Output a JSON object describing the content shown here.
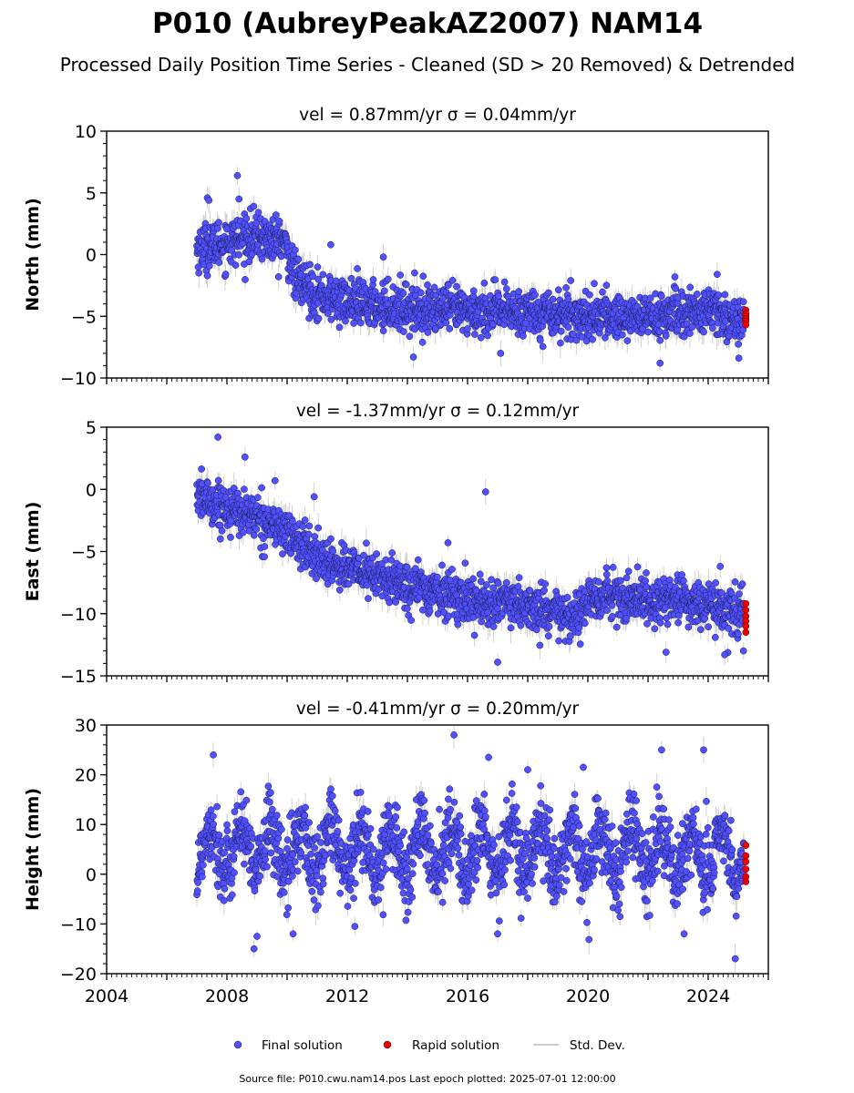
{
  "figure": {
    "title": "P010 (AubreyPeakAZ2007) NAM14",
    "subtitle": "Processed Daily Position Time Series - Cleaned (SD > 20 Removed) & Detrended",
    "footer": "Source file: P010.cwu.nam14.pos  Last epoch plotted: 2025-07-01 12:00:00"
  },
  "legend": [
    {
      "label": "Final solution",
      "color": "#5050ff",
      "marker": "dot"
    },
    {
      "label": "Rapid solution",
      "color": "#ee0000",
      "marker": "dot"
    },
    {
      "label": "Std. Dev.",
      "color": "#cccccc",
      "marker": "line"
    }
  ],
  "chart_data": [
    {
      "type": "scatter",
      "component": "north",
      "title": "vel = 0.87mm/yr   σ = 0.04mm/yr",
      "ylabel": "North (mm)",
      "xlim": [
        2004,
        2026
      ],
      "ylim": [
        -10,
        10
      ],
      "yticks": [
        -10,
        -5,
        0,
        5,
        10
      ],
      "ytick_labels": [
        "−10",
        "−5",
        "0",
        "5",
        "10"
      ],
      "trend": [
        [
          2007.0,
          0.5
        ],
        [
          2008.0,
          1.0
        ],
        [
          2009.0,
          1.5
        ],
        [
          2009.9,
          1.0
        ],
        [
          2010.3,
          -2.0
        ],
        [
          2011.0,
          -3.2
        ],
        [
          2012.0,
          -3.9
        ],
        [
          2014.0,
          -4.3
        ],
        [
          2016.0,
          -4.6
        ],
        [
          2018.0,
          -4.6
        ],
        [
          2019.0,
          -4.8
        ],
        [
          2020.0,
          -5.0
        ],
        [
          2022.0,
          -5.0
        ],
        [
          2024.0,
          -4.6
        ],
        [
          2025.0,
          -5.4
        ],
        [
          2025.3,
          -5.2
        ]
      ],
      "noise_sd": 0.95,
      "outliers": [
        [
          2008.35,
          6.4
        ],
        [
          2007.35,
          4.6
        ],
        [
          2007.4,
          4.4
        ],
        [
          2008.4,
          4.5
        ],
        [
          2011.45,
          0.8
        ],
        [
          2013.2,
          -0.2
        ],
        [
          2014.2,
          -8.3
        ],
        [
          2017.1,
          -8.0
        ],
        [
          2022.4,
          -8.8
        ],
        [
          2024.3,
          -1.6
        ]
      ],
      "rapid_x": 2025.25,
      "rapid_y": [
        -4.5,
        -4.8,
        -5.0,
        -5.2,
        -5.4,
        -5.7
      ]
    },
    {
      "type": "scatter",
      "component": "east",
      "title": "vel = -1.37mm/yr   σ = 0.12mm/yr",
      "ylabel": "East (mm)",
      "xlim": [
        2004,
        2026
      ],
      "ylim": [
        -15,
        5
      ],
      "yticks": [
        -15,
        -10,
        -5,
        0,
        5
      ],
      "ytick_labels": [
        "−15",
        "−10",
        "−5",
        "0",
        "5"
      ],
      "trend": [
        [
          2007.0,
          -0.5
        ],
        [
          2008.0,
          -1.5
        ],
        [
          2009.0,
          -2.2
        ],
        [
          2010.0,
          -3.5
        ],
        [
          2011.0,
          -5.5
        ],
        [
          2012.0,
          -6.3
        ],
        [
          2013.0,
          -7.0
        ],
        [
          2014.0,
          -7.7
        ],
        [
          2015.0,
          -8.3
        ],
        [
          2016.0,
          -8.8
        ],
        [
          2017.0,
          -9.2
        ],
        [
          2018.0,
          -9.5
        ],
        [
          2019.0,
          -10.0
        ],
        [
          2019.5,
          -10.6
        ],
        [
          2020.0,
          -9.0
        ],
        [
          2021.0,
          -8.6
        ],
        [
          2022.0,
          -9.0
        ],
        [
          2023.0,
          -8.9
        ],
        [
          2024.0,
          -9.3
        ],
        [
          2025.0,
          -10.1
        ],
        [
          2025.3,
          -10.0
        ]
      ],
      "noise_sd": 0.9,
      "outliers": [
        [
          2007.7,
          4.2
        ],
        [
          2008.6,
          2.6
        ],
        [
          2009.6,
          0.7
        ],
        [
          2010.9,
          -0.6
        ],
        [
          2015.35,
          -4.3
        ],
        [
          2016.6,
          -0.2
        ],
        [
          2017.0,
          -13.9
        ],
        [
          2022.6,
          -13.1
        ],
        [
          2024.4,
          -6.2
        ],
        [
          2024.55,
          -13.3
        ]
      ],
      "rapid_x": 2025.25,
      "rapid_y": [
        -9.2,
        -9.7,
        -10.2,
        -10.6,
        -11.0,
        -11.5
      ]
    },
    {
      "type": "scatter",
      "component": "height",
      "title": "vel = -0.41mm/yr   σ = 0.20mm/yr",
      "ylabel": "Height (mm)",
      "xlim": [
        2004,
        2026
      ],
      "ylim": [
        -20,
        30
      ],
      "yticks": [
        -20,
        -10,
        0,
        10,
        20,
        30
      ],
      "ytick_labels": [
        "−20",
        "−10",
        "0",
        "10",
        "20",
        "30"
      ],
      "xticks": [
        2004,
        2008,
        2012,
        2016,
        2020,
        2024
      ],
      "xtick_labels": [
        "2004",
        "2008",
        "2012",
        "2016",
        "2020",
        "2024"
      ],
      "trend": [
        [
          2007.0,
          5.0
        ],
        [
          2025.3,
          4.0
        ]
      ],
      "seasonal_amplitude": 5.0,
      "noise_sd": 3.8,
      "outliers": [
        [
          2007.55,
          24.0
        ],
        [
          2008.9,
          -15.0
        ],
        [
          2009.0,
          -12.5
        ],
        [
          2010.2,
          -12.0
        ],
        [
          2012.25,
          -10.5
        ],
        [
          2015.55,
          28.0
        ],
        [
          2016.7,
          23.5
        ],
        [
          2017.0,
          -12.0
        ],
        [
          2019.85,
          21.5
        ],
        [
          2022.45,
          25.0
        ],
        [
          2023.2,
          -12.0
        ],
        [
          2023.85,
          25.0
        ],
        [
          2024.9,
          -17.0
        ],
        [
          2018.0,
          21.0
        ]
      ],
      "rapid_x": 2025.25,
      "rapid_y": [
        5.8,
        3.7,
        2.5,
        1.0,
        -0.5,
        -1.5
      ]
    }
  ]
}
